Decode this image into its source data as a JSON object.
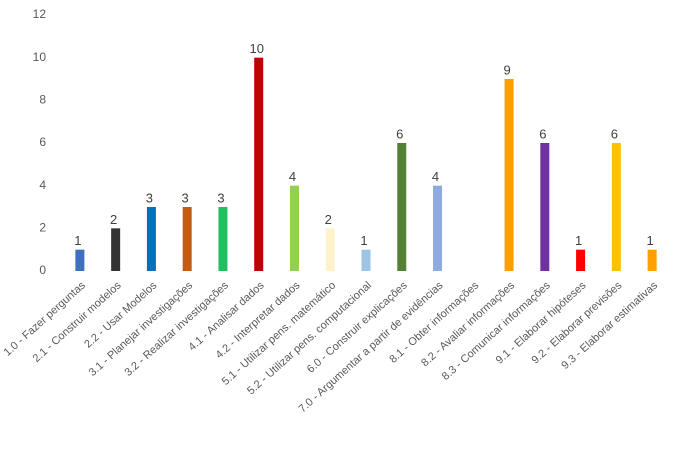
{
  "chart_data": {
    "type": "bar",
    "categories": [
      "1.0 - Fazer perguntas",
      "2.1 - Construir modelos",
      "2.2 - Usar Modelos",
      "3.1 - Planejar investigações",
      "3.2 - Realizar investigações",
      "4.1 - Analisar dados",
      "4.2 - Interpretar dados",
      "5.1 - Utilizar pens. matemático",
      "5.2 - Utilizar pens. computacional",
      "6.0 - Construir explicações",
      "7.0 - Argumentar a partir de evidências",
      "8.1 - Obter informações",
      "8.2 - Avaliar informações",
      "8.3 - Comunicar informações",
      "9.1 - Elaborar hipóteses",
      "9.2 - Elaborar previsões",
      "9.3 - Elaborar estimativas"
    ],
    "values": [
      1,
      2,
      3,
      3,
      3,
      10,
      4,
      2,
      1,
      6,
      4,
      null,
      9,
      6,
      1,
      6,
      1
    ],
    "colors": [
      "#3f6fbf",
      "#333333",
      "#0070c0",
      "#c55a11",
      "#1fc060",
      "#c00000",
      "#92d050",
      "#fff2cc",
      "#9dc3e6",
      "#548235",
      "#8faadc",
      "#999999",
      "#ffa000",
      "#7030a0",
      "#ff0000",
      "#ffc000",
      "#ffa000"
    ],
    "ylim": [
      0,
      12
    ],
    "yticks": [
      0,
      2,
      4,
      6,
      8,
      10,
      12
    ],
    "grid": false
  }
}
